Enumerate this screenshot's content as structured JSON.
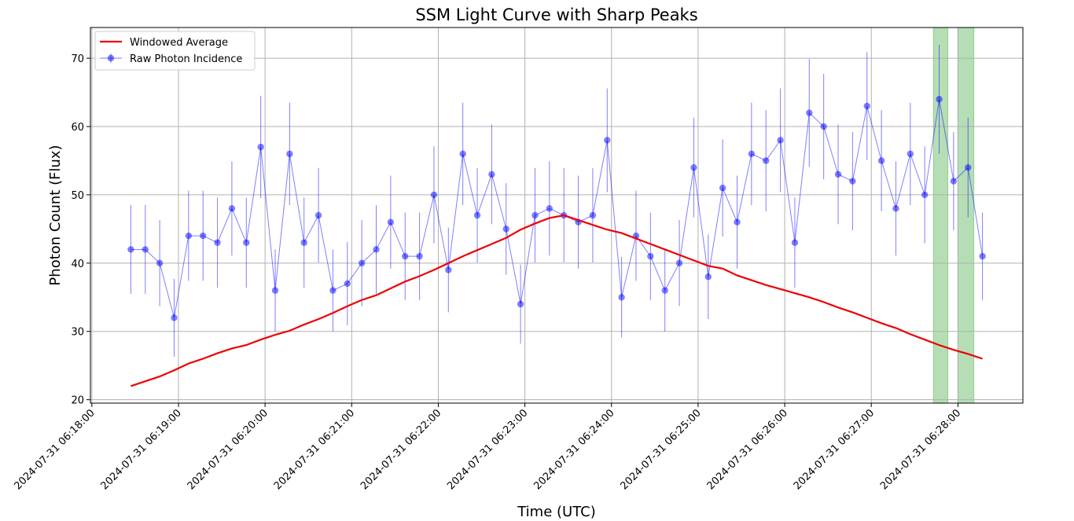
{
  "chart_data": {
    "type": "line",
    "title": "SSM Light Curve with Sharp Peaks",
    "xlabel": "Time (UTC)",
    "ylabel": "Photon Count (Flux)",
    "x_tick_labels": [
      "2024-07-31 06:18:00",
      "2024-07-31 06:19:00",
      "2024-07-31 06:20:00",
      "2024-07-31 06:21:00",
      "2024-07-31 06:22:00",
      "2024-07-31 06:23:00",
      "2024-07-31 06:24:00",
      "2024-07-31 06:25:00",
      "2024-07-31 06:26:00",
      "2024-07-31 06:27:00",
      "2024-07-31 06:28:00"
    ],
    "xlim": [
      "2024-07-31 06:17:59",
      "2024-07-31 06:28:45"
    ],
    "ylim": [
      19.5,
      74.5
    ],
    "y_ticks": [
      20,
      30,
      40,
      50,
      60,
      70
    ],
    "grid": true,
    "legend": "top-left",
    "x": [
      "06:18:27",
      "06:18:37",
      "06:18:47",
      "06:18:57",
      "06:19:07",
      "06:19:17",
      "06:19:27",
      "06:19:37",
      "06:19:47",
      "06:19:57",
      "06:20:07",
      "06:20:17",
      "06:20:27",
      "06:20:37",
      "06:20:47",
      "06:20:57",
      "06:21:07",
      "06:21:17",
      "06:21:27",
      "06:21:37",
      "06:21:47",
      "06:21:57",
      "06:22:07",
      "06:22:17",
      "06:22:27",
      "06:22:37",
      "06:22:47",
      "06:22:57",
      "06:23:07",
      "06:23:17",
      "06:23:27",
      "06:23:37",
      "06:23:47",
      "06:23:57",
      "06:24:07",
      "06:24:17",
      "06:24:27",
      "06:24:37",
      "06:24:47",
      "06:24:57",
      "06:25:07",
      "06:25:17",
      "06:25:27",
      "06:25:37",
      "06:25:47",
      "06:25:57",
      "06:26:07",
      "06:26:17",
      "06:26:27",
      "06:26:37",
      "06:26:47",
      "06:26:57",
      "06:27:07",
      "06:27:17",
      "06:27:27",
      "06:27:37",
      "06:27:47",
      "06:27:57",
      "06:28:07",
      "06:28:17"
    ],
    "series": [
      {
        "name": "Raw Photon Incidence",
        "style": "markers-with-errorbars",
        "color": "#0000ff",
        "values": [
          42,
          42,
          40,
          32,
          44,
          44,
          43,
          48,
          43,
          57,
          36,
          56,
          43,
          47,
          36,
          37,
          40,
          42,
          46,
          41,
          41,
          50,
          39,
          56,
          47,
          53,
          45,
          34,
          47,
          48,
          47,
          46,
          47,
          58,
          35,
          44,
          41,
          36,
          40,
          54,
          38,
          51,
          46,
          56,
          55,
          58,
          43,
          62,
          60,
          53,
          52,
          63,
          55,
          48,
          56,
          50,
          64,
          52,
          54,
          41
        ],
        "error": [
          6.5,
          6.5,
          6.3,
          5.7,
          6.6,
          6.6,
          6.6,
          6.9,
          6.6,
          7.5,
          6.0,
          7.5,
          6.6,
          6.9,
          6.0,
          6.1,
          6.3,
          6.5,
          6.8,
          6.4,
          6.4,
          7.1,
          6.2,
          7.5,
          6.9,
          7.3,
          6.7,
          5.8,
          6.9,
          6.9,
          6.9,
          6.8,
          6.9,
          7.6,
          5.9,
          6.6,
          6.4,
          6.0,
          6.3,
          7.3,
          6.2,
          7.1,
          6.8,
          7.5,
          7.4,
          7.6,
          6.6,
          7.9,
          7.7,
          7.3,
          7.2,
          7.9,
          7.4,
          6.9,
          7.5,
          7.1,
          8.0,
          7.2,
          7.3,
          6.4
        ]
      },
      {
        "name": "Windowed Average",
        "style": "line",
        "color": "#ee0000",
        "values": [
          22.0,
          22.7,
          23.4,
          24.3,
          25.3,
          26.0,
          26.8,
          27.5,
          28.0,
          28.8,
          29.5,
          30.1,
          31.0,
          31.8,
          32.7,
          33.7,
          34.6,
          35.3,
          36.3,
          37.3,
          38.1,
          39.0,
          40.0,
          41.0,
          41.9,
          42.8,
          43.7,
          44.9,
          45.8,
          46.6,
          47.0,
          46.3,
          45.6,
          44.9,
          44.4,
          43.6,
          42.8,
          42.0,
          41.2,
          40.4,
          39.6,
          39.2,
          38.2,
          37.5,
          36.8,
          36.2,
          35.6,
          35.0,
          34.3,
          33.5,
          32.8,
          32.0,
          31.2,
          30.5,
          29.6,
          28.8,
          28.0,
          27.3,
          26.7,
          26.0
        ]
      }
    ],
    "highlight_spans": [
      {
        "start": "06:27:43",
        "end": "06:27:53",
        "color": "#2ca02c"
      },
      {
        "start": "06:28:00",
        "end": "06:28:11",
        "color": "#2ca02c"
      }
    ]
  }
}
